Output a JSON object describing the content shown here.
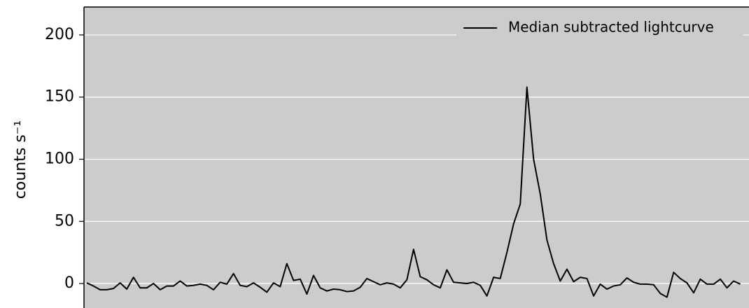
{
  "chart_data": {
    "type": "line",
    "ylabel": "counts s⁻¹",
    "x": [
      0,
      1,
      2,
      3,
      4,
      5,
      6,
      7,
      8,
      9,
      10,
      11,
      12,
      13,
      14,
      15,
      16,
      17,
      18,
      19,
      20,
      21,
      22,
      23,
      24,
      25,
      26,
      27,
      28,
      29,
      30,
      31,
      32,
      33,
      34,
      35,
      36,
      37,
      38,
      39,
      40,
      41,
      42,
      43,
      44,
      45,
      46,
      47,
      48,
      49,
      50,
      51,
      52,
      53,
      54,
      55,
      56,
      57,
      58,
      59,
      60,
      61,
      62,
      63,
      64,
      65,
      66,
      67,
      68,
      69,
      70,
      71,
      72,
      73,
      74,
      75,
      76,
      77,
      78,
      79,
      80,
      81,
      82,
      83,
      84,
      85,
      86,
      87,
      88,
      89,
      90,
      91,
      92,
      93,
      94,
      95,
      96,
      97,
      98
    ],
    "series": [
      {
        "name": "Median subtracted lightcurve",
        "color": "#000000",
        "values": [
          0.5,
          -2,
          -5,
          -5,
          -4,
          0.5,
          -4.5,
          5,
          -3.5,
          -3.5,
          0,
          -5,
          -2,
          -2,
          2,
          -2,
          -1.5,
          -0.5,
          -1.5,
          -5,
          1,
          -0.5,
          8,
          -1.5,
          -2.5,
          0.5,
          -3,
          -7,
          0.5,
          -2.5,
          16,
          2.5,
          3.5,
          -8.5,
          6.5,
          -3.5,
          -6,
          -4.5,
          -5,
          -6.5,
          -6,
          -3,
          4,
          1.5,
          -1,
          0.5,
          -0.5,
          -3.5,
          3,
          27.5,
          5.5,
          3,
          -1,
          -3.5,
          11,
          1,
          0.5,
          0,
          1,
          -1.5,
          -10,
          5,
          4,
          25,
          48,
          64,
          158,
          100,
          72,
          35,
          16,
          2,
          11.5,
          1.5,
          5,
          4,
          -10,
          -0.5,
          -4.5,
          -2,
          -1,
          4.5,
          1,
          -0.5,
          -0.5,
          -1,
          -8,
          -11,
          9,
          4,
          0.5,
          -7.5,
          3.5,
          -0.5,
          -0.5,
          3.5,
          -3.5,
          2,
          -0.5
        ]
      }
    ],
    "xlim": [
      -0.42,
      99.3
    ],
    "ylim": [
      -19.7,
      222.5
    ],
    "yticks": [
      0,
      50,
      100,
      150,
      200
    ],
    "grid": true,
    "legend": "upper right",
    "background": "#cccccc"
  }
}
